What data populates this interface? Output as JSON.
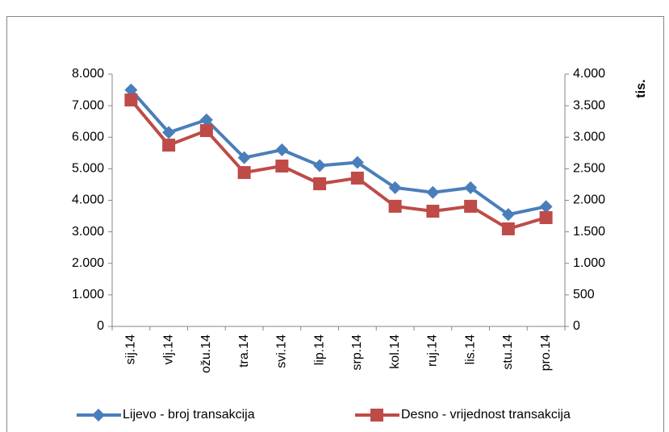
{
  "chart_data": {
    "type": "line",
    "y2_label": "tis.",
    "categories": [
      "sij.14",
      "vlj.14",
      "ožu.14",
      "tra.14",
      "svi.14",
      "lip.14",
      "srp.14",
      "kol.14",
      "ruj.14",
      "lis.14",
      "stu.14",
      "pro.14"
    ],
    "series": [
      {
        "name": "Lijevo - broj transakcija",
        "color": "#4a7ebb",
        "marker": "diamond",
        "values": [
          7500,
          6150,
          6550,
          5350,
          5600,
          5100,
          5200,
          4400,
          4250,
          4400,
          3550,
          3800
        ]
      },
      {
        "name": "Desno - vrijednost transakcija",
        "color": "#be4b48",
        "marker": "square",
        "axis": "y2",
        "values": [
          3590,
          2875,
          3105,
          2440,
          2543,
          2262,
          2352,
          1905,
          1827,
          1905,
          1547,
          1725
        ]
      }
    ],
    "ylim": [
      0,
      8000
    ],
    "yticks": [
      0,
      {
        "value": 1000,
        "label": "1.000"
      },
      {
        "value": 2000,
        "label": "2.000"
      },
      {
        "value": 3000,
        "label": "3.000"
      },
      {
        "value": 4000,
        "label": "4.000"
      },
      {
        "value": 5000,
        "label": "5.000"
      },
      {
        "value": 6000,
        "label": "6.000"
      },
      {
        "value": 7000,
        "label": "7.000"
      },
      {
        "value": 8000,
        "label": "8.000"
      }
    ],
    "y2lim": [
      0,
      4000
    ],
    "y2ticks": [
      0,
      500,
      {
        "value": 1000,
        "label": "1.000"
      },
      {
        "value": 1500,
        "label": "1.500"
      },
      {
        "value": 2000,
        "label": "2.000"
      },
      {
        "value": 2500,
        "label": "2.500"
      },
      {
        "value": 3000,
        "label": "3.000"
      },
      {
        "value": 3500,
        "label": "3.500"
      },
      {
        "value": 4000,
        "label": "4.000"
      }
    ],
    "legend": "bottom"
  }
}
